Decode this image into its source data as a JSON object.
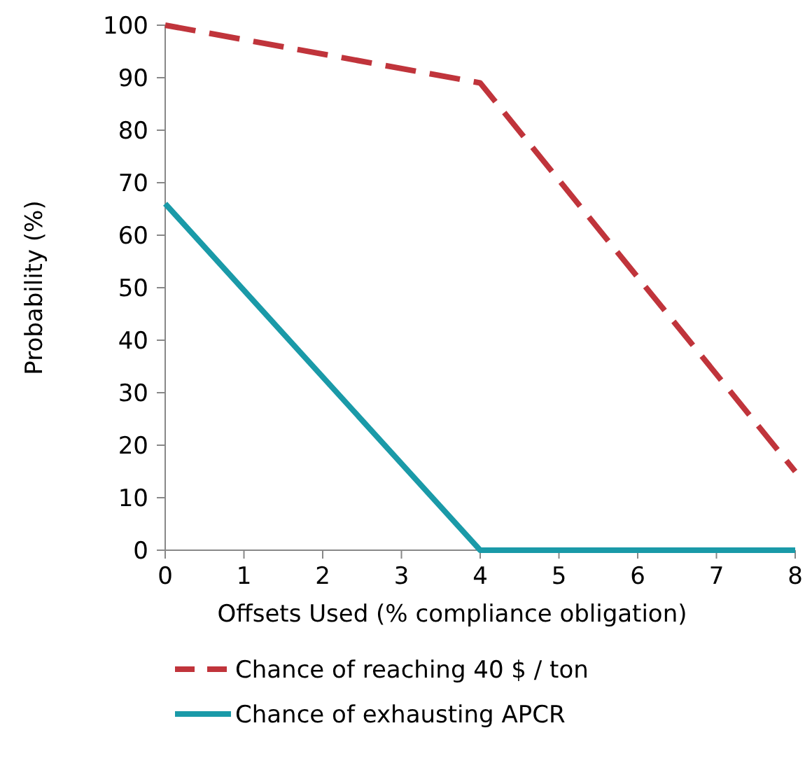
{
  "chart_data": {
    "type": "line",
    "xlabel": "Offsets Used (% compliance obligation)",
    "ylabel": "Probability (%)",
    "x": [
      0,
      4,
      8
    ],
    "xlim": [
      0,
      8
    ],
    "xticks": [
      0,
      1,
      2,
      3,
      4,
      5,
      6,
      7,
      8
    ],
    "ylim": [
      0,
      100
    ],
    "yticks": [
      0,
      10,
      20,
      30,
      40,
      50,
      60,
      70,
      80,
      90,
      100
    ],
    "series": [
      {
        "name": "Chance of reaching 40 $ / ton",
        "color": "#c0343b",
        "values": [
          100,
          89,
          15
        ],
        "line_style": "dashed"
      },
      {
        "name": "Chance of exhausting APCR",
        "color": "#1a9aa8",
        "values": [
          66,
          0,
          0
        ],
        "line_style": "solid"
      }
    ],
    "grid": false,
    "legend": "bottom",
    "marker": "none"
  }
}
